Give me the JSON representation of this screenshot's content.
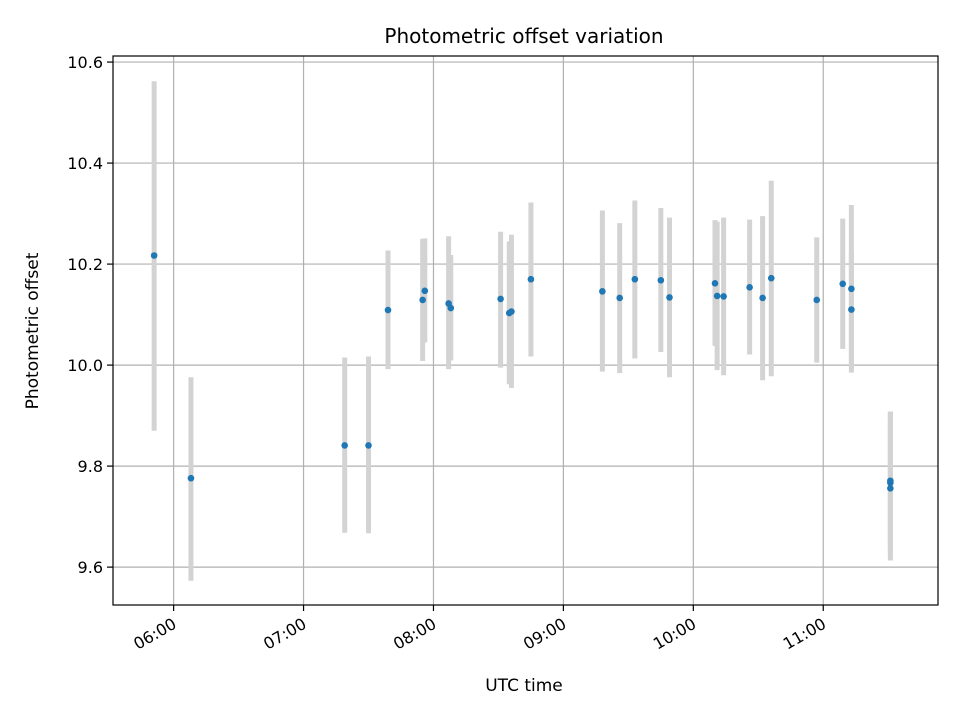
{
  "chart_data": {
    "type": "scatter",
    "title": "Photometric offset variation",
    "xlabel": "UTC time",
    "ylabel": "Photometric offset",
    "xlim": [
      "05:32",
      "11:53"
    ],
    "ylim": [
      9.525,
      10.612
    ],
    "grid": true,
    "x_ticks": [
      "06:00",
      "07:00",
      "08:00",
      "09:00",
      "10:00",
      "11:00"
    ],
    "y_ticks": [
      9.6,
      9.8,
      10.0,
      10.2,
      10.4,
      10.6
    ],
    "marker_color": "#1f77b4",
    "errorbar_color": "#d3d3d3",
    "points": [
      {
        "t": "05:51",
        "y": 10.217,
        "lo": 9.87,
        "hi": 10.562
      },
      {
        "t": "06:08",
        "y": 9.776,
        "lo": 9.573,
        "hi": 9.976
      },
      {
        "t": "07:19",
        "y": 9.841,
        "lo": 9.668,
        "hi": 10.015
      },
      {
        "t": "07:30",
        "y": 9.841,
        "lo": 9.667,
        "hi": 10.017
      },
      {
        "t": "07:39",
        "y": 10.109,
        "lo": 9.992,
        "hi": 10.227
      },
      {
        "t": "07:55",
        "y": 10.129,
        "lo": 10.008,
        "hi": 10.25
      },
      {
        "t": "07:56",
        "y": 10.147,
        "lo": 10.045,
        "hi": 10.251
      },
      {
        "t": "08:07",
        "y": 10.122,
        "lo": 9.992,
        "hi": 10.255
      },
      {
        "t": "08:08",
        "y": 10.113,
        "lo": 10.009,
        "hi": 10.218
      },
      {
        "t": "08:31",
        "y": 10.131,
        "lo": 9.995,
        "hi": 10.264
      },
      {
        "t": "08:35",
        "y": 10.103,
        "lo": 9.962,
        "hi": 10.245
      },
      {
        "t": "08:36",
        "y": 10.106,
        "lo": 9.955,
        "hi": 10.258
      },
      {
        "t": "08:45",
        "y": 10.17,
        "lo": 10.017,
        "hi": 10.322
      },
      {
        "t": "09:18",
        "y": 10.146,
        "lo": 9.987,
        "hi": 10.306
      },
      {
        "t": "09:26",
        "y": 10.133,
        "lo": 9.984,
        "hi": 10.281
      },
      {
        "t": "09:33",
        "y": 10.17,
        "lo": 10.013,
        "hi": 10.326
      },
      {
        "t": "09:45",
        "y": 10.168,
        "lo": 10.026,
        "hi": 10.311
      },
      {
        "t": "09:49",
        "y": 10.134,
        "lo": 9.976,
        "hi": 10.292
      },
      {
        "t": "10:10",
        "y": 10.162,
        "lo": 10.038,
        "hi": 10.287
      },
      {
        "t": "10:11",
        "y": 10.137,
        "lo": 9.99,
        "hi": 10.284
      },
      {
        "t": "10:14",
        "y": 10.136,
        "lo": 9.98,
        "hi": 10.292
      },
      {
        "t": "10:26",
        "y": 10.154,
        "lo": 10.021,
        "hi": 10.288
      },
      {
        "t": "10:32",
        "y": 10.133,
        "lo": 9.97,
        "hi": 10.295
      },
      {
        "t": "10:36",
        "y": 10.172,
        "lo": 9.978,
        "hi": 10.365
      },
      {
        "t": "10:57",
        "y": 10.129,
        "lo": 10.005,
        "hi": 10.253
      },
      {
        "t": "11:09",
        "y": 10.161,
        "lo": 10.032,
        "hi": 10.29
      },
      {
        "t": "11:13",
        "y": 10.151,
        "lo": 9.985,
        "hi": 10.317
      },
      {
        "t": "11:13",
        "y": 10.11,
        "lo": 9.992,
        "hi": 10.227
      },
      {
        "t": "11:31",
        "y": 9.756,
        "lo": 9.613,
        "hi": 9.898
      },
      {
        "t": "11:31",
        "y": 9.767,
        "lo": 9.625,
        "hi": 9.908
      },
      {
        "t": "11:31",
        "y": 9.771,
        "lo": 9.633,
        "hi": 9.908
      }
    ]
  }
}
